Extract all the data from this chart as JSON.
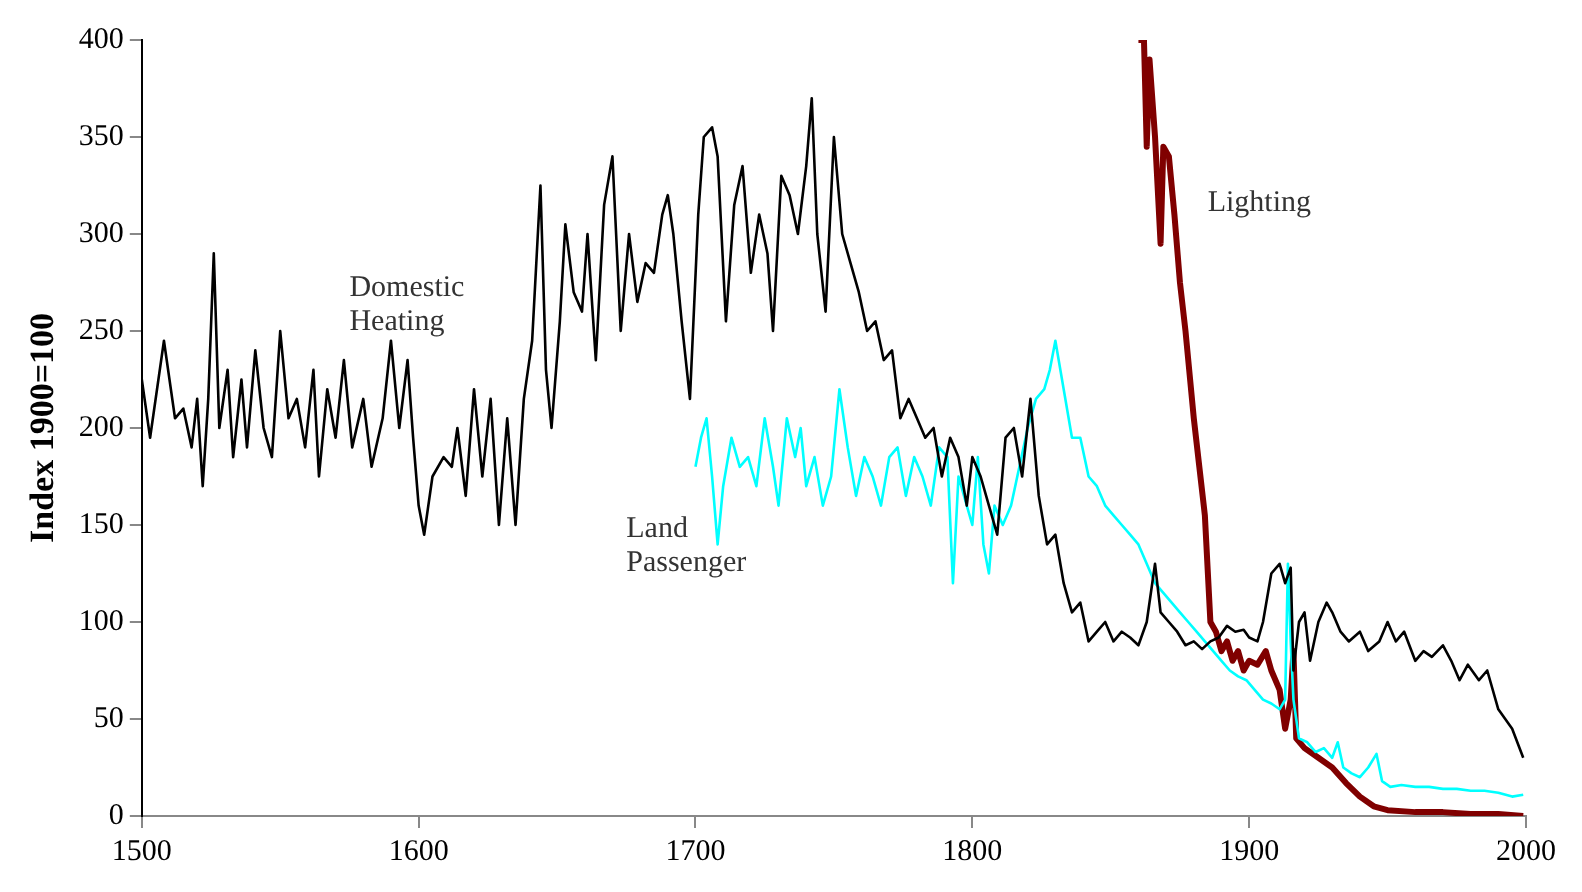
{
  "chart_data": {
    "type": "line",
    "ylabel": "Index 1900=100",
    "xlim": [
      1500,
      2000
    ],
    "xticks": [
      1500,
      1600,
      1700,
      1800,
      1900,
      2000
    ],
    "ylim": [
      0,
      400
    ],
    "yticks": [
      0,
      50,
      100,
      150,
      200,
      250,
      300,
      350,
      400
    ],
    "grid": false,
    "legend": false,
    "marker": "none",
    "line_style": "solid",
    "series": [
      {
        "name": "Domestic Heating",
        "color": "#000000",
        "x": [
          1500,
          1503,
          1508,
          1512,
          1515,
          1518,
          1520,
          1522,
          1524,
          1526,
          1528,
          1531,
          1533,
          1536,
          1538,
          1541,
          1544,
          1547,
          1550,
          1553,
          1556,
          1559,
          1562,
          1564,
          1567,
          1570,
          1573,
          1576,
          1580,
          1583,
          1587,
          1590,
          1593,
          1596,
          1598,
          1600,
          1602,
          1605,
          1609,
          1612,
          1614,
          1617,
          1620,
          1623,
          1626,
          1629,
          1632,
          1635,
          1638,
          1641,
          1644,
          1646,
          1648,
          1651,
          1653,
          1656,
          1659,
          1661,
          1664,
          1667,
          1670,
          1673,
          1676,
          1679,
          1682,
          1685,
          1688,
          1690,
          1692,
          1695,
          1698,
          1701,
          1703,
          1706,
          1708,
          1711,
          1714,
          1717,
          1720,
          1723,
          1726,
          1728,
          1731,
          1734,
          1737,
          1740,
          1742,
          1744,
          1747,
          1750,
          1753,
          1756,
          1759,
          1762,
          1765,
          1768,
          1771,
          1774,
          1777,
          1780,
          1783,
          1786,
          1789,
          1792,
          1795,
          1798,
          1800,
          1803,
          1806,
          1809,
          1812,
          1815,
          1818,
          1821,
          1824,
          1827,
          1830,
          1833,
          1836,
          1839,
          1842,
          1845,
          1848,
          1851,
          1854,
          1857,
          1860,
          1863,
          1866,
          1868,
          1871,
          1874,
          1877,
          1880,
          1883,
          1886,
          1889,
          1892,
          1895,
          1898,
          1900,
          1903,
          1905,
          1908,
          1911,
          1913,
          1915,
          1916,
          1918,
          1920,
          1922,
          1925,
          1928,
          1930,
          1933,
          1936,
          1940,
          1943,
          1947,
          1950,
          1953,
          1956,
          1960,
          1963,
          1966,
          1970,
          1973,
          1976,
          1979,
          1983,
          1986,
          1990,
          1995,
          1999
        ],
        "values": [
          225,
          195,
          245,
          205,
          210,
          190,
          215,
          170,
          215,
          290,
          200,
          230,
          185,
          225,
          190,
          240,
          200,
          185,
          250,
          205,
          215,
          190,
          230,
          175,
          220,
          195,
          235,
          190,
          215,
          180,
          205,
          245,
          200,
          235,
          195,
          160,
          145,
          175,
          185,
          180,
          200,
          165,
          220,
          175,
          215,
          150,
          205,
          150,
          215,
          245,
          325,
          230,
          200,
          255,
          305,
          270,
          260,
          300,
          235,
          315,
          340,
          250,
          300,
          265,
          285,
          280,
          310,
          320,
          300,
          255,
          215,
          310,
          350,
          355,
          340,
          255,
          315,
          335,
          280,
          310,
          290,
          250,
          330,
          320,
          300,
          335,
          370,
          300,
          260,
          350,
          300,
          285,
          270,
          250,
          255,
          235,
          240,
          205,
          215,
          205,
          195,
          200,
          175,
          195,
          185,
          160,
          185,
          175,
          160,
          145,
          195,
          200,
          175,
          215,
          165,
          140,
          145,
          120,
          105,
          110,
          90,
          95,
          100,
          90,
          95,
          92,
          88,
          100,
          130,
          105,
          100,
          95,
          88,
          90,
          86,
          90,
          92,
          98,
          95,
          96,
          92,
          90,
          100,
          125,
          130,
          120,
          128,
          75,
          100,
          105,
          80,
          100,
          110,
          105,
          95,
          90,
          95,
          85,
          90,
          100,
          90,
          95,
          80,
          85,
          82,
          88,
          80,
          70,
          78,
          70,
          75,
          55,
          45,
          30
        ]
      },
      {
        "name": "Land Passenger",
        "color": "#00ffff",
        "x": [
          1700,
          1702,
          1704,
          1706,
          1708,
          1710,
          1713,
          1716,
          1719,
          1722,
          1725,
          1728,
          1730,
          1733,
          1736,
          1738,
          1740,
          1743,
          1746,
          1749,
          1752,
          1755,
          1758,
          1761,
          1764,
          1767,
          1770,
          1773,
          1776,
          1779,
          1782,
          1785,
          1788,
          1791,
          1793,
          1795,
          1798,
          1800,
          1802,
          1804,
          1806,
          1808,
          1811,
          1814,
          1817,
          1820,
          1823,
          1826,
          1828,
          1830,
          1833,
          1836,
          1839,
          1842,
          1845,
          1848,
          1851,
          1854,
          1857,
          1860,
          1863,
          1866,
          1869,
          1872,
          1875,
          1878,
          1881,
          1884,
          1887,
          1890,
          1893,
          1896,
          1899,
          1902,
          1905,
          1908,
          1911,
          1913,
          1914,
          1915,
          1916,
          1918,
          1921,
          1924,
          1927,
          1930,
          1932,
          1934,
          1937,
          1940,
          1943,
          1946,
          1948,
          1951,
          1955,
          1960,
          1965,
          1970,
          1975,
          1980,
          1985,
          1990,
          1995,
          1999
        ],
        "values": [
          180,
          195,
          205,
          175,
          140,
          170,
          195,
          180,
          185,
          170,
          205,
          180,
          160,
          205,
          185,
          200,
          170,
          185,
          160,
          175,
          220,
          190,
          165,
          185,
          175,
          160,
          185,
          190,
          165,
          185,
          175,
          160,
          190,
          185,
          120,
          175,
          160,
          150,
          185,
          140,
          125,
          160,
          150,
          160,
          180,
          200,
          215,
          220,
          230,
          245,
          220,
          195,
          195,
          175,
          170,
          160,
          155,
          150,
          145,
          140,
          130,
          120,
          115,
          110,
          105,
          100,
          95,
          90,
          85,
          80,
          75,
          72,
          70,
          65,
          60,
          58,
          55,
          60,
          130,
          90,
          60,
          40,
          38,
          33,
          35,
          30,
          38,
          25,
          22,
          20,
          25,
          32,
          18,
          15,
          16,
          15,
          15,
          14,
          14,
          13,
          13,
          12,
          10,
          11
        ]
      },
      {
        "name": "Lighting",
        "color": "#800000",
        "x": [
          1860,
          1862,
          1863,
          1864,
          1866,
          1868,
          1869,
          1871,
          1873,
          1875,
          1877,
          1880,
          1882,
          1884,
          1886,
          1888,
          1890,
          1892,
          1894,
          1896,
          1898,
          1900,
          1903,
          1906,
          1908,
          1911,
          1913,
          1915,
          1916,
          1917,
          1920,
          1925,
          1930,
          1935,
          1940,
          1945,
          1950,
          1960,
          1970,
          1980,
          1990,
          1999
        ],
        "values": [
          400,
          400,
          345,
          390,
          350,
          295,
          345,
          340,
          310,
          275,
          250,
          205,
          180,
          155,
          100,
          95,
          85,
          90,
          80,
          85,
          75,
          80,
          78,
          85,
          75,
          65,
          45,
          60,
          85,
          40,
          35,
          30,
          25,
          17,
          10,
          5,
          3,
          2,
          2,
          1,
          1,
          0
        ]
      }
    ]
  }
}
